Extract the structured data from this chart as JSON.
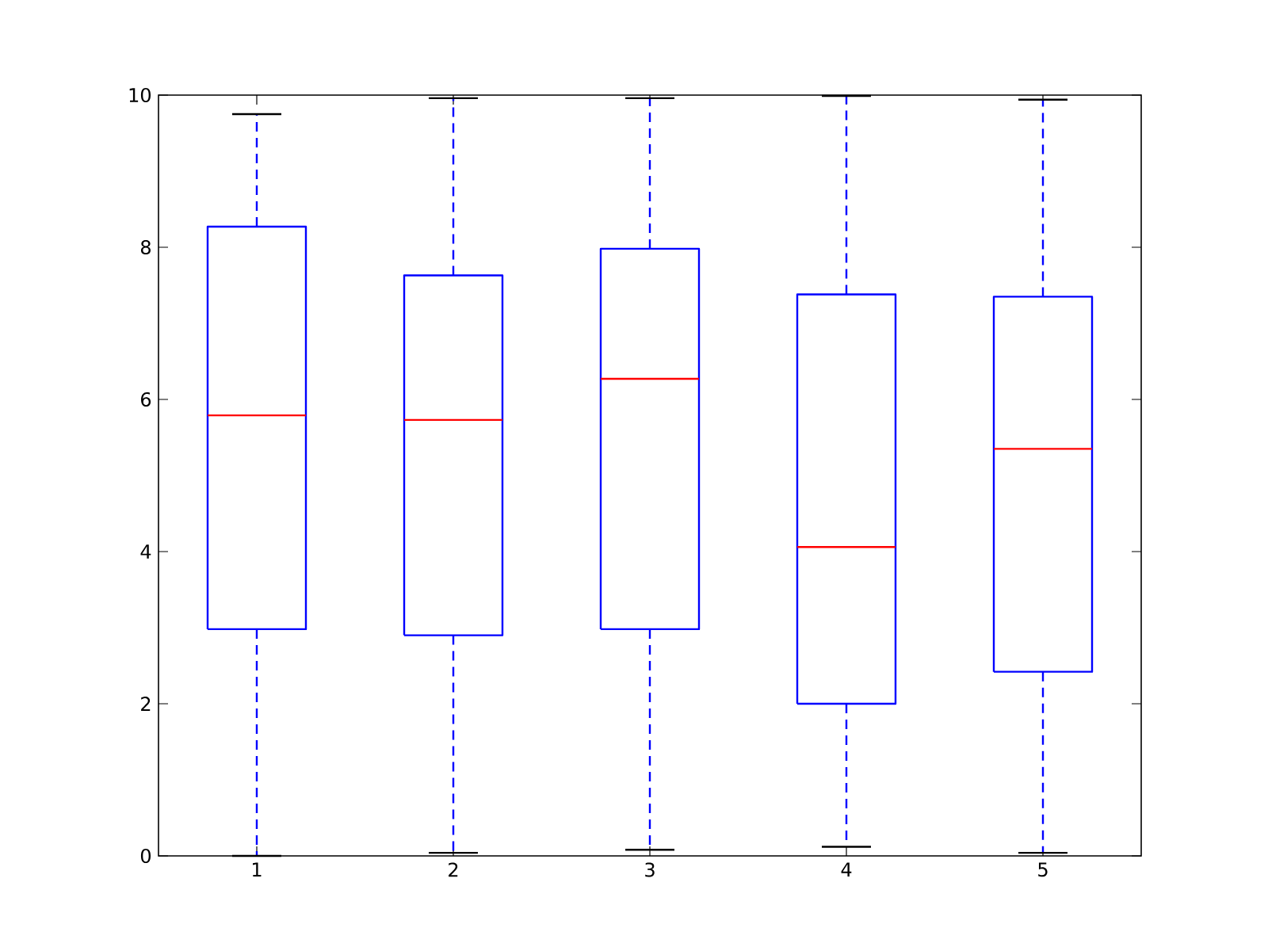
{
  "chart_data": {
    "type": "box",
    "categories": [
      "1",
      "2",
      "3",
      "4",
      "5"
    ],
    "color": "#0000ff",
    "ylim": [
      0,
      10
    ],
    "yticks": [
      0,
      2,
      4,
      6,
      8,
      10
    ],
    "grid": false,
    "boxes": [
      {
        "low": 0.0,
        "q1": 2.98,
        "median": 5.79,
        "q3": 8.27,
        "high": 9.75
      },
      {
        "low": 0.04,
        "q1": 2.9,
        "median": 5.73,
        "q3": 7.63,
        "high": 9.96
      },
      {
        "low": 0.08,
        "q1": 2.98,
        "median": 6.27,
        "q3": 7.98,
        "high": 9.96
      },
      {
        "low": 0.12,
        "q1": 2.0,
        "median": 4.06,
        "q3": 7.38,
        "high": 9.99
      },
      {
        "low": 0.04,
        "q1": 2.42,
        "median": 5.35,
        "q3": 7.35,
        "high": 9.94
      }
    ]
  }
}
